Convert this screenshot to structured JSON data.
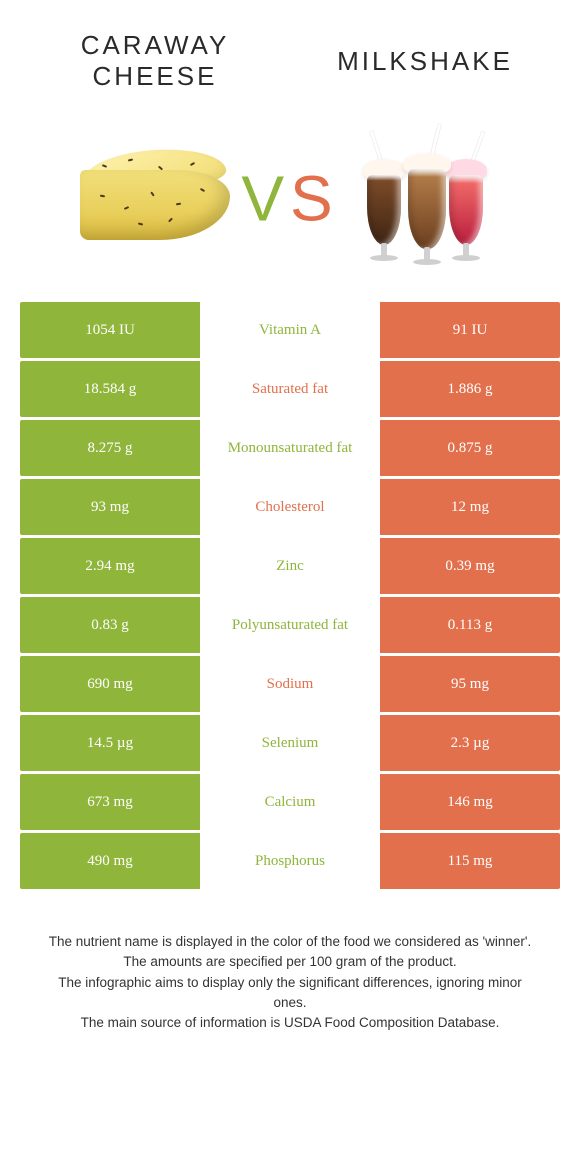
{
  "title_left": "Caraway cheese",
  "title_right": "Milkshake",
  "vs": {
    "v": "V",
    "s": "S"
  },
  "colors": {
    "left_cell": "#8fb53b",
    "right_cell": "#e2704c",
    "mid_left_text": "#8fb53b",
    "mid_right_text": "#e2704c",
    "white": "#ffffff"
  },
  "rows": [
    {
      "left": "1054 IU",
      "label": "Vitamin A",
      "right": "91 IU",
      "winner": "left"
    },
    {
      "left": "18.584 g",
      "label": "Saturated fat",
      "right": "1.886 g",
      "winner": "right"
    },
    {
      "left": "8.275 g",
      "label": "Monounsaturated fat",
      "right": "0.875 g",
      "winner": "left"
    },
    {
      "left": "93 mg",
      "label": "Cholesterol",
      "right": "12 mg",
      "winner": "right"
    },
    {
      "left": "2.94 mg",
      "label": "Zinc",
      "right": "0.39 mg",
      "winner": "left"
    },
    {
      "left": "0.83 g",
      "label": "Polyunsaturated fat",
      "right": "0.113 g",
      "winner": "left"
    },
    {
      "left": "690 mg",
      "label": "Sodium",
      "right": "95 mg",
      "winner": "right"
    },
    {
      "left": "14.5 µg",
      "label": "Selenium",
      "right": "2.3 µg",
      "winner": "left"
    },
    {
      "left": "673 mg",
      "label": "Calcium",
      "right": "146 mg",
      "winner": "left"
    },
    {
      "left": "490 mg",
      "label": "Phosphorus",
      "right": "115 mg",
      "winner": "left"
    }
  ],
  "footer": [
    "The nutrient name is displayed in the color of the food we considered as 'winner'.",
    "The amounts are specified per 100 gram of the product.",
    "The infographic aims to display only the significant differences, ignoring minor ones.",
    "The main source of information is USDA Food Composition Database."
  ]
}
